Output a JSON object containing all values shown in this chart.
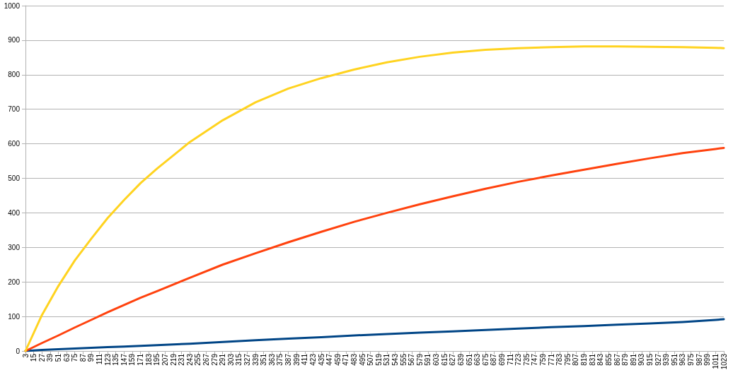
{
  "chart_data": {
    "type": "line",
    "x": [
      3,
      27,
      51,
      75,
      99,
      123,
      147,
      171,
      195,
      243,
      291,
      339,
      387,
      435,
      483,
      531,
      579,
      627,
      675,
      723,
      771,
      819,
      867,
      915,
      963,
      1011,
      1023
    ],
    "series": [
      {
        "color": "#004586",
        "values": [
          0,
          3,
          5,
          7,
          9,
          11,
          13,
          15,
          17,
          21,
          26,
          31,
          36,
          40,
          45,
          49,
          53,
          57,
          61,
          65,
          69,
          72,
          76,
          80,
          84,
          90,
          92
        ]
      },
      {
        "color": "#ff420e",
        "values": [
          0,
          23,
          45,
          68,
          90,
          112,
          133,
          154,
          173,
          212,
          250,
          283,
          315,
          345,
          374,
          400,
          425,
          448,
          470,
          490,
          508,
          525,
          542,
          558,
          573,
          585,
          588
        ]
      },
      {
        "color": "#ffd320",
        "values": [
          0,
          104,
          188,
          262,
          325,
          385,
          437,
          486,
          528,
          605,
          668,
          720,
          760,
          790,
          815,
          836,
          852,
          864,
          872,
          877,
          880,
          882,
          882,
          881,
          880,
          878,
          877
        ]
      }
    ],
    "xlim": [
      3,
      1023
    ],
    "xticks": [
      3,
      15,
      27,
      39,
      51,
      63,
      75,
      87,
      99,
      111,
      123,
      135,
      147,
      159,
      171,
      183,
      195,
      207,
      219,
      231,
      243,
      255,
      267,
      279,
      291,
      303,
      315,
      327,
      339,
      351,
      363,
      375,
      387,
      399,
      411,
      423,
      435,
      447,
      459,
      471,
      483,
      495,
      507,
      519,
      531,
      543,
      555,
      567,
      579,
      591,
      603,
      615,
      627,
      639,
      651,
      663,
      675,
      687,
      699,
      711,
      723,
      735,
      747,
      759,
      771,
      783,
      795,
      807,
      819,
      831,
      843,
      855,
      867,
      879,
      891,
      903,
      915,
      927,
      939,
      951,
      963,
      975,
      987,
      999,
      1011,
      1023
    ],
    "ylim": [
      0,
      1000
    ],
    "yticks": [
      0,
      100,
      200,
      300,
      400,
      500,
      600,
      700,
      800,
      900,
      1000
    ],
    "grid": "y",
    "marker": "none",
    "line_style": "solid"
  }
}
